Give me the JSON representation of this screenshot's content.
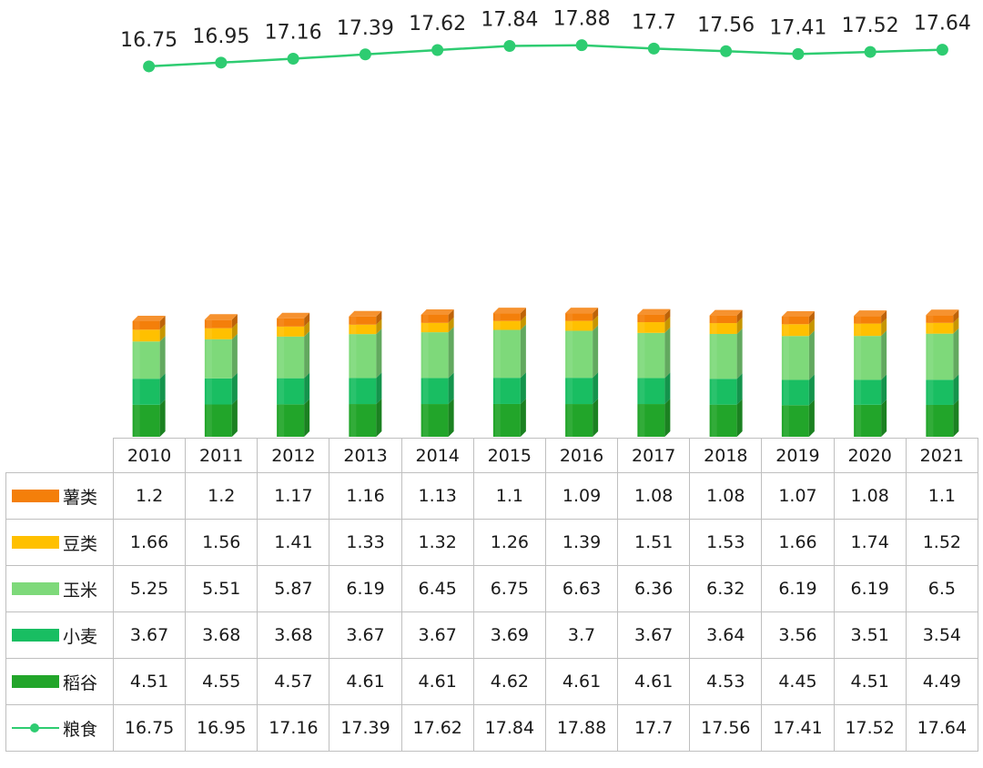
{
  "chart_data": {
    "type": "bar",
    "stacked": true,
    "categories": [
      "2010",
      "2011",
      "2012",
      "2013",
      "2014",
      "2015",
      "2016",
      "2017",
      "2018",
      "2019",
      "2020",
      "2021"
    ],
    "series": [
      {
        "name": "稻谷",
        "color": "#22a52a",
        "values": [
          4.51,
          4.55,
          4.57,
          4.61,
          4.61,
          4.62,
          4.61,
          4.61,
          4.53,
          4.45,
          4.51,
          4.49
        ]
      },
      {
        "name": "小麦",
        "color": "#19be62",
        "values": [
          3.67,
          3.68,
          3.68,
          3.67,
          3.67,
          3.69,
          3.7,
          3.67,
          3.64,
          3.56,
          3.51,
          3.54
        ]
      },
      {
        "name": "玉米",
        "color": "#7ed97a",
        "values": [
          5.25,
          5.51,
          5.87,
          6.19,
          6.45,
          6.75,
          6.63,
          6.36,
          6.32,
          6.19,
          6.19,
          6.5
        ]
      },
      {
        "name": "豆类",
        "color": "#ffc000",
        "values": [
          1.66,
          1.56,
          1.41,
          1.33,
          1.32,
          1.26,
          1.39,
          1.51,
          1.53,
          1.66,
          1.74,
          1.52
        ]
      },
      {
        "name": "薯类",
        "color": "#f47f0a",
        "values": [
          1.2,
          1.2,
          1.17,
          1.16,
          1.13,
          1.1,
          1.09,
          1.08,
          1.08,
          1.07,
          1.08,
          1.1
        ]
      }
    ],
    "line_series": {
      "name": "粮食",
      "type": "line",
      "color": "#2ecc71",
      "values": [
        16.75,
        16.95,
        17.16,
        17.39,
        17.62,
        17.84,
        17.88,
        17.7,
        17.56,
        17.41,
        17.52,
        17.64
      ],
      "labels": [
        "16.75",
        "16.95",
        "17.16",
        "17.39",
        "17.62",
        "17.84",
        "17.88",
        "17.7",
        "17.56",
        "17.41",
        "17.52",
        "17.64"
      ]
    },
    "legend_position": "data table",
    "grid": false
  },
  "table": {
    "columns": [
      "2010",
      "2011",
      "2012",
      "2013",
      "2014",
      "2015",
      "2016",
      "2017",
      "2018",
      "2019",
      "2020",
      "2021"
    ],
    "rows": [
      {
        "label": "薯类",
        "color": "#f47f0a",
        "kind": "bar",
        "cells": [
          "1.2",
          "1.2",
          "1.17",
          "1.16",
          "1.13",
          "1.1",
          "1.09",
          "1.08",
          "1.08",
          "1.07",
          "1.08",
          "1.1"
        ]
      },
      {
        "label": "豆类",
        "color": "#ffc000",
        "kind": "bar",
        "cells": [
          "1.66",
          "1.56",
          "1.41",
          "1.33",
          "1.32",
          "1.26",
          "1.39",
          "1.51",
          "1.53",
          "1.66",
          "1.74",
          "1.52"
        ]
      },
      {
        "label": "玉米",
        "color": "#7ed97a",
        "kind": "bar",
        "cells": [
          "5.25",
          "5.51",
          "5.87",
          "6.19",
          "6.45",
          "6.75",
          "6.63",
          "6.36",
          "6.32",
          "6.19",
          "6.19",
          "6.5"
        ]
      },
      {
        "label": "小麦",
        "color": "#19be62",
        "kind": "bar",
        "cells": [
          "3.67",
          "3.68",
          "3.68",
          "3.67",
          "3.67",
          "3.69",
          "3.7",
          "3.67",
          "3.64",
          "3.56",
          "3.51",
          "3.54"
        ]
      },
      {
        "label": "稻谷",
        "color": "#22a52a",
        "kind": "bar",
        "cells": [
          "4.51",
          "4.55",
          "4.57",
          "4.61",
          "4.61",
          "4.62",
          "4.61",
          "4.61",
          "4.53",
          "4.45",
          "4.51",
          "4.49"
        ]
      },
      {
        "label": "粮食",
        "color": "#2ecc71",
        "kind": "line",
        "cells": [
          "16.75",
          "16.95",
          "17.16",
          "17.39",
          "17.62",
          "17.84",
          "17.88",
          "17.7",
          "17.56",
          "17.41",
          "17.52",
          "17.64"
        ]
      }
    ]
  }
}
